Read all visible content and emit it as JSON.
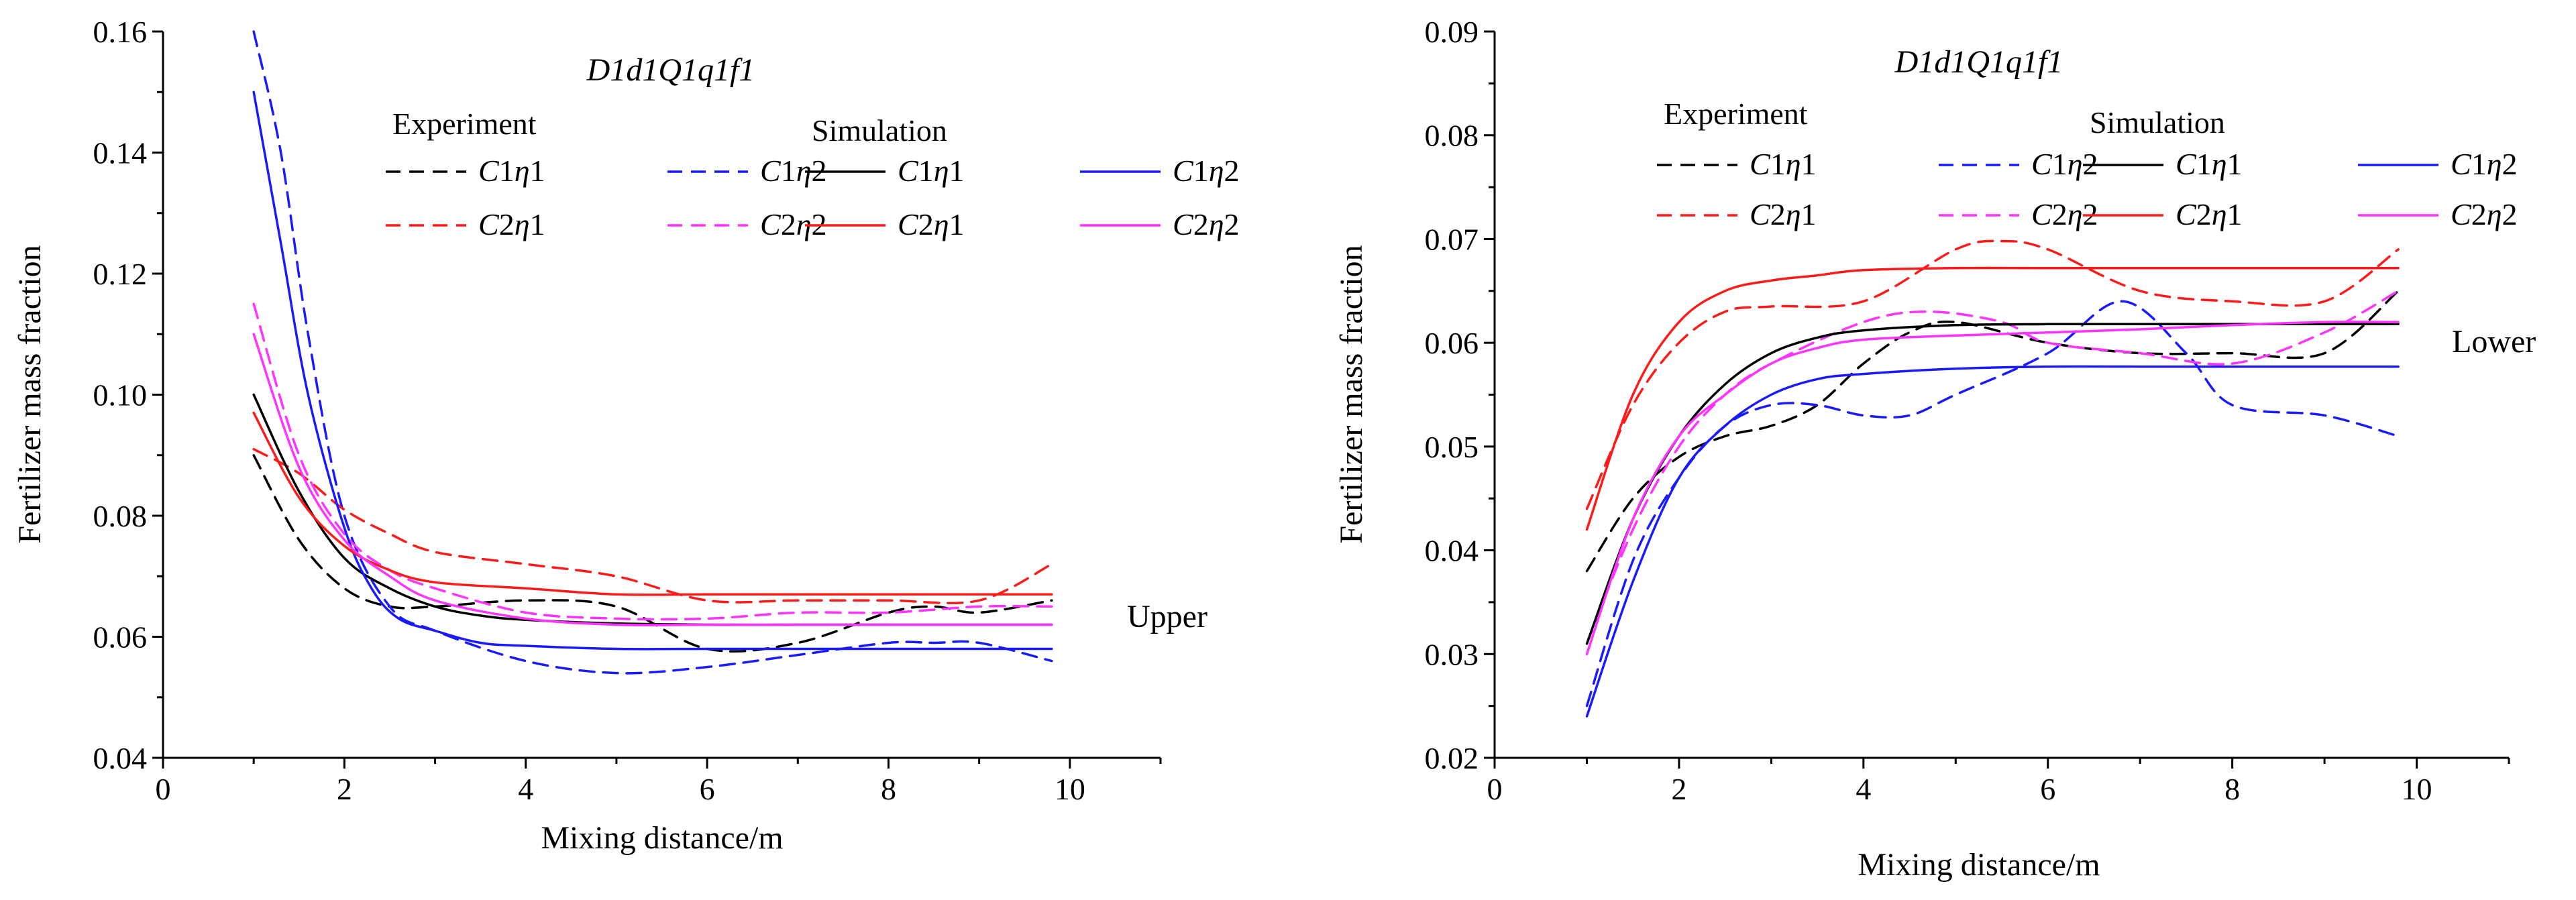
{
  "chart_data": [
    {
      "type": "line",
      "title": "D1d1Q1q1f1",
      "region_label": "Upper",
      "xlabel": "Mixing distance/m",
      "ylabel": "Fertilizer mass fraction",
      "xlim": [
        0,
        11
      ],
      "ylim": [
        0.04,
        0.16
      ],
      "xticks": [
        0,
        2,
        4,
        6,
        8,
        10
      ],
      "yticks": [
        0.04,
        0.06,
        0.08,
        0.1,
        0.12,
        0.14,
        0.16
      ],
      "xtick_labels": [
        "0",
        "2",
        "4",
        "6",
        "8",
        "10"
      ],
      "ytick_labels": [
        "0.04",
        "0.06",
        "0.08",
        "0.10",
        "0.12",
        "0.14",
        "0.16"
      ],
      "legend": {
        "experiment_header": "Experiment",
        "simulation_header": "Simulation",
        "labels": [
          "C1η1",
          "C1η2",
          "C2η1",
          "C2η2"
        ]
      },
      "series": [
        {
          "name": "Experiment C1η1",
          "group": "experiment",
          "color": "#000000",
          "dashed": true,
          "x": [
            1.0,
            1.5,
            2.0,
            2.5,
            3.0,
            4.0,
            5.0,
            6.0,
            7.0,
            8.0,
            8.5,
            9.0,
            9.8
          ],
          "y": [
            0.09,
            0.076,
            0.068,
            0.065,
            0.065,
            0.066,
            0.065,
            0.058,
            0.059,
            0.064,
            0.065,
            0.064,
            0.066
          ]
        },
        {
          "name": "Experiment C1η2",
          "group": "experiment",
          "color": "#1a1aff",
          "dashed": true,
          "x": [
            1.0,
            1.3,
            1.6,
            2.0,
            2.5,
            3.0,
            4.0,
            5.0,
            6.0,
            7.0,
            8.0,
            8.5,
            9.0,
            9.8
          ],
          "y": [
            0.16,
            0.14,
            0.11,
            0.08,
            0.065,
            0.061,
            0.056,
            0.054,
            0.055,
            0.057,
            0.059,
            0.059,
            0.059,
            0.056
          ]
        },
        {
          "name": "Experiment C2η1",
          "group": "experiment",
          "color": "#ff1a1a",
          "dashed": true,
          "x": [
            1.0,
            1.5,
            2.0,
            2.5,
            3.0,
            4.0,
            5.0,
            6.0,
            7.0,
            8.0,
            9.0,
            9.8
          ],
          "y": [
            0.091,
            0.087,
            0.081,
            0.077,
            0.074,
            0.072,
            0.07,
            0.066,
            0.066,
            0.066,
            0.066,
            0.072
          ]
        },
        {
          "name": "Experiment C2η2",
          "group": "experiment",
          "color": "#ff33ff",
          "dashed": true,
          "x": [
            1.0,
            1.5,
            2.0,
            2.5,
            3.0,
            4.0,
            5.0,
            6.0,
            7.0,
            8.0,
            9.0,
            9.8
          ],
          "y": [
            0.115,
            0.09,
            0.077,
            0.071,
            0.068,
            0.064,
            0.063,
            0.063,
            0.064,
            0.064,
            0.065,
            0.065
          ]
        },
        {
          "name": "Simulation C1η1",
          "group": "simulation",
          "color": "#000000",
          "dashed": false,
          "x": [
            1.0,
            1.5,
            2.0,
            2.5,
            3.0,
            3.5,
            4.0,
            5.0,
            6.0,
            7.0,
            8.0,
            9.0,
            9.8
          ],
          "y": [
            0.1,
            0.084,
            0.073,
            0.068,
            0.065,
            0.0635,
            0.0628,
            0.0622,
            0.062,
            0.062,
            0.062,
            0.062,
            0.062
          ]
        },
        {
          "name": "Simulation C1η2",
          "group": "simulation",
          "color": "#1a1aff",
          "dashed": false,
          "x": [
            1.0,
            1.3,
            1.6,
            2.0,
            2.3,
            2.6,
            3.0,
            3.5,
            4.0,
            5.0,
            6.0,
            7.0,
            8.0,
            9.0,
            9.8
          ],
          "y": [
            0.15,
            0.125,
            0.1,
            0.078,
            0.068,
            0.063,
            0.061,
            0.059,
            0.0585,
            0.058,
            0.058,
            0.058,
            0.058,
            0.058,
            0.058
          ]
        },
        {
          "name": "Simulation C2η1",
          "group": "simulation",
          "color": "#ff1a1a",
          "dashed": false,
          "x": [
            1.0,
            1.5,
            2.0,
            2.5,
            3.0,
            4.0,
            5.0,
            6.0,
            7.0,
            8.0,
            9.0,
            9.8
          ],
          "y": [
            0.097,
            0.083,
            0.075,
            0.071,
            0.069,
            0.068,
            0.067,
            0.067,
            0.067,
            0.067,
            0.067,
            0.067
          ]
        },
        {
          "name": "Simulation C2η2",
          "group": "simulation",
          "color": "#ff33ff",
          "dashed": false,
          "x": [
            1.0,
            1.5,
            2.0,
            2.5,
            3.0,
            4.0,
            5.0,
            6.0,
            7.0,
            8.0,
            9.0,
            9.8
          ],
          "y": [
            0.11,
            0.088,
            0.076,
            0.07,
            0.066,
            0.063,
            0.062,
            0.062,
            0.062,
            0.062,
            0.062,
            0.062
          ]
        }
      ]
    },
    {
      "type": "line",
      "title": "D1d1Q1q1f1",
      "region_label": "Lower",
      "xlabel": "Mixing distance/m",
      "ylabel": "Fertilizer mass fraction",
      "xlim": [
        0,
        11
      ],
      "ylim": [
        0.02,
        0.09
      ],
      "xticks": [
        0,
        2,
        4,
        6,
        8,
        10
      ],
      "yticks": [
        0.02,
        0.03,
        0.04,
        0.05,
        0.06,
        0.07,
        0.08,
        0.09
      ],
      "xtick_labels": [
        "0",
        "2",
        "4",
        "6",
        "8",
        "10"
      ],
      "ytick_labels": [
        "0.02",
        "0.03",
        "0.04",
        "0.05",
        "0.06",
        "0.07",
        "0.08",
        "0.09"
      ],
      "legend": {
        "experiment_header": "Experiment",
        "simulation_header": "Simulation",
        "labels": [
          "C1η1",
          "C1η2",
          "C2η1",
          "C2η2"
        ]
      },
      "series": [
        {
          "name": "Experiment C1η1",
          "group": "experiment",
          "color": "#000000",
          "dashed": true,
          "x": [
            1.0,
            1.5,
            2.0,
            2.5,
            3.0,
            3.5,
            4.0,
            4.5,
            5.0,
            6.0,
            7.0,
            8.0,
            9.0,
            9.8
          ],
          "y": [
            0.038,
            0.045,
            0.049,
            0.051,
            0.052,
            0.054,
            0.058,
            0.061,
            0.062,
            0.06,
            0.059,
            0.059,
            0.059,
            0.065
          ]
        },
        {
          "name": "Experiment C1η2",
          "group": "experiment",
          "color": "#1a1aff",
          "dashed": true,
          "x": [
            1.0,
            1.5,
            2.0,
            2.5,
            3.0,
            3.5,
            4.0,
            4.5,
            5.0,
            6.0,
            6.8,
            7.5,
            8.0,
            9.0,
            9.8
          ],
          "y": [
            0.025,
            0.039,
            0.047,
            0.052,
            0.054,
            0.054,
            0.053,
            0.053,
            0.055,
            0.059,
            0.064,
            0.059,
            0.054,
            0.053,
            0.051
          ]
        },
        {
          "name": "Experiment C2η1",
          "group": "experiment",
          "color": "#ff1a1a",
          "dashed": true,
          "x": [
            1.0,
            1.5,
            2.0,
            2.5,
            3.0,
            4.0,
            5.0,
            5.5,
            6.0,
            7.0,
            8.0,
            9.0,
            9.8
          ],
          "y": [
            0.044,
            0.054,
            0.06,
            0.063,
            0.0635,
            0.064,
            0.069,
            0.0698,
            0.069,
            0.065,
            0.064,
            0.064,
            0.069
          ]
        },
        {
          "name": "Experiment C2η2",
          "group": "experiment",
          "color": "#ff33ff",
          "dashed": true,
          "x": [
            1.0,
            1.5,
            2.0,
            2.5,
            3.0,
            4.0,
            4.7,
            5.5,
            6.0,
            7.0,
            8.0,
            9.0,
            9.8
          ],
          "y": [
            0.031,
            0.042,
            0.05,
            0.055,
            0.058,
            0.062,
            0.063,
            0.062,
            0.06,
            0.059,
            0.058,
            0.061,
            0.065
          ]
        },
        {
          "name": "Simulation C1η1",
          "group": "simulation",
          "color": "#000000",
          "dashed": false,
          "x": [
            1.0,
            1.5,
            2.0,
            2.5,
            3.0,
            3.5,
            4.0,
            5.0,
            6.0,
            7.0,
            8.0,
            9.0,
            9.8
          ],
          "y": [
            0.031,
            0.043,
            0.051,
            0.056,
            0.059,
            0.0605,
            0.0612,
            0.0617,
            0.0618,
            0.0618,
            0.0618,
            0.0618,
            0.0618
          ]
        },
        {
          "name": "Simulation C1η2",
          "group": "simulation",
          "color": "#1a1aff",
          "dashed": false,
          "x": [
            1.0,
            1.5,
            2.0,
            2.5,
            3.0,
            3.5,
            4.0,
            5.0,
            6.0,
            7.0,
            8.0,
            9.0,
            9.8
          ],
          "y": [
            0.024,
            0.037,
            0.047,
            0.052,
            0.055,
            0.0565,
            0.057,
            0.0575,
            0.0577,
            0.0577,
            0.0577,
            0.0577,
            0.0577
          ]
        },
        {
          "name": "Simulation C2η1",
          "group": "simulation",
          "color": "#ff1a1a",
          "dashed": false,
          "x": [
            1.0,
            1.5,
            2.0,
            2.5,
            3.0,
            3.5,
            4.0,
            5.0,
            6.0,
            7.0,
            8.0,
            9.0,
            9.8
          ],
          "y": [
            0.042,
            0.055,
            0.062,
            0.065,
            0.066,
            0.0665,
            0.067,
            0.0672,
            0.0672,
            0.0672,
            0.0672,
            0.0672,
            0.0672
          ]
        },
        {
          "name": "Simulation C2η2",
          "group": "simulation",
          "color": "#ff33ff",
          "dashed": false,
          "x": [
            1.0,
            1.5,
            2.0,
            2.5,
            3.0,
            3.5,
            4.0,
            5.0,
            6.0,
            7.0,
            8.0,
            9.0,
            9.8
          ],
          "y": [
            0.03,
            0.043,
            0.051,
            0.055,
            0.058,
            0.0595,
            0.0603,
            0.0607,
            0.061,
            0.0613,
            0.0617,
            0.062,
            0.062
          ]
        }
      ]
    }
  ]
}
